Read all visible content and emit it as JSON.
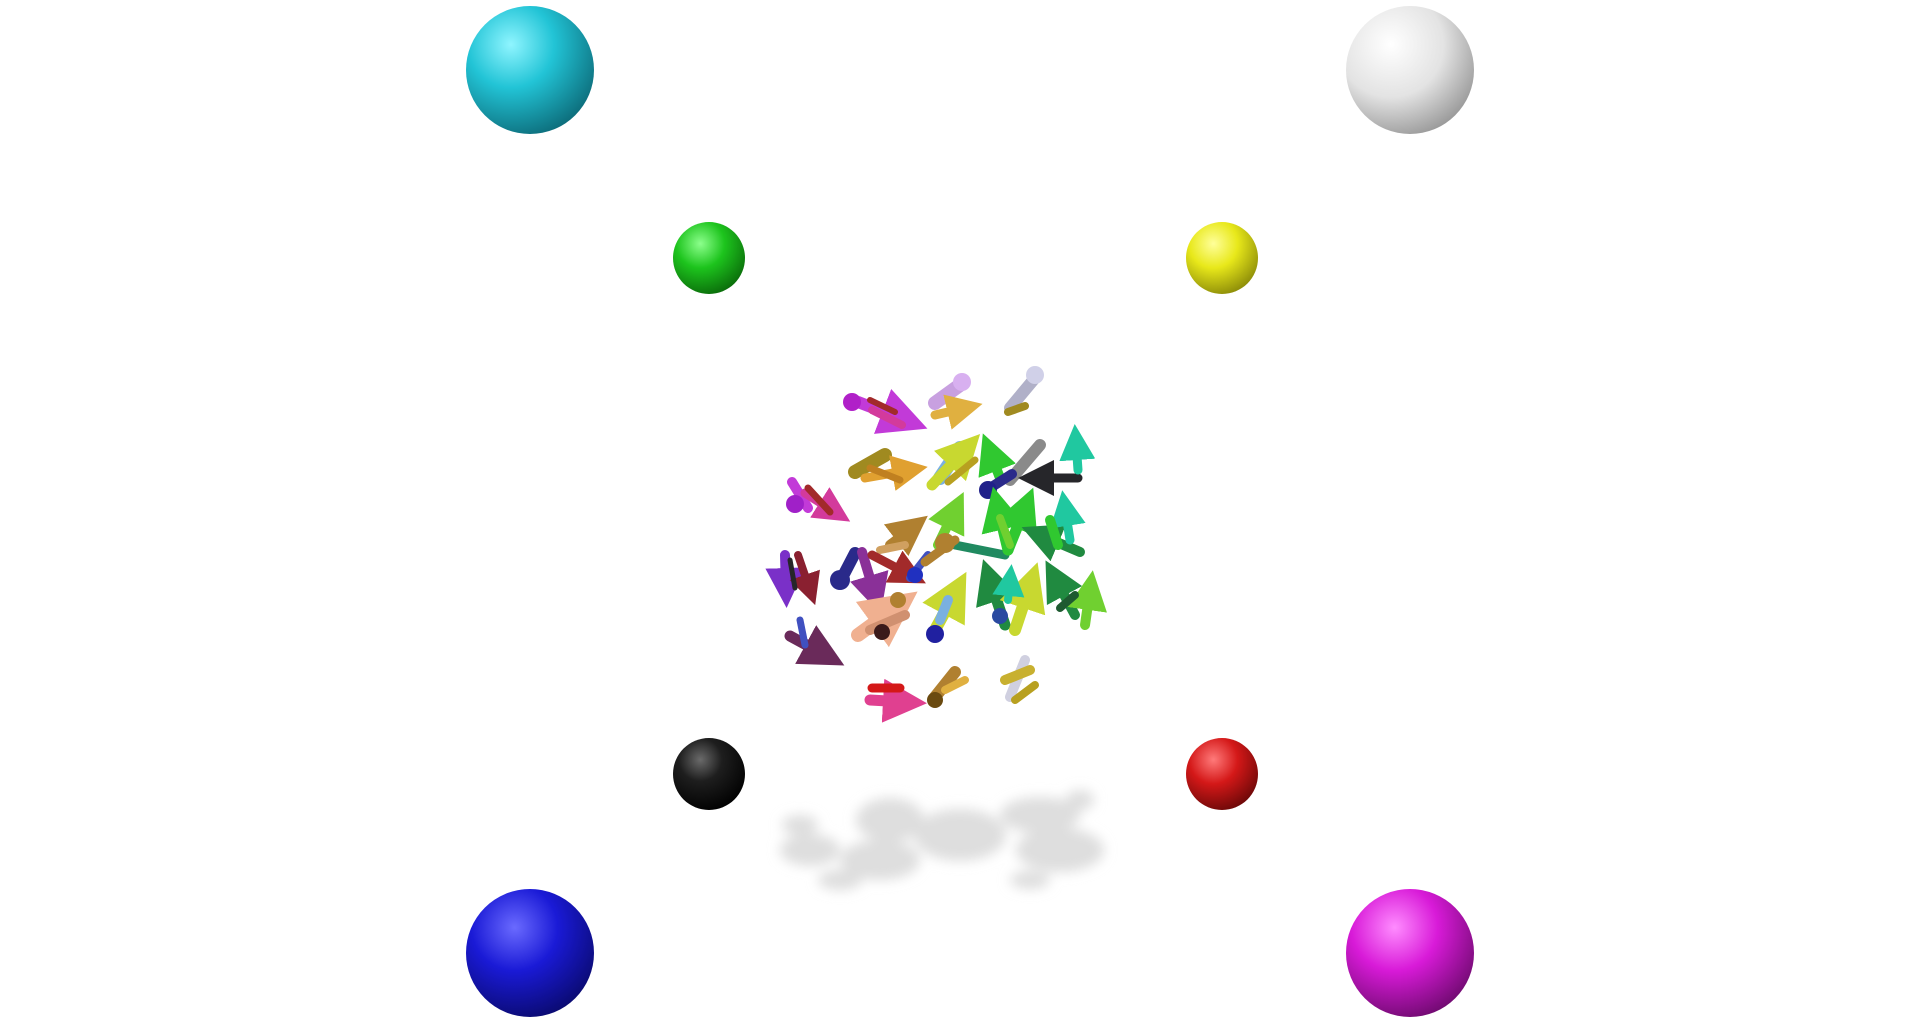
{
  "scene": {
    "background": "#ffffff",
    "corner_spheres": [
      {
        "name": "cyan-sphere",
        "color": "#22c4d6",
        "position": "top-left-outer"
      },
      {
        "name": "white-sphere",
        "color": "#dcdcdc",
        "position": "top-right-outer"
      },
      {
        "name": "blue-sphere",
        "color": "#1a1ad6",
        "position": "bottom-left-outer"
      },
      {
        "name": "magenta-sphere",
        "color": "#d81ad8",
        "position": "bottom-right-outer"
      },
      {
        "name": "green-sphere",
        "color": "#1dc41d",
        "position": "top-left-inner"
      },
      {
        "name": "yellow-sphere",
        "color": "#e8e81a",
        "position": "top-right-inner"
      },
      {
        "name": "black-sphere",
        "color": "#1a1a1a",
        "position": "bottom-left-inner"
      },
      {
        "name": "red-sphere",
        "color": "#d41818",
        "position": "bottom-right-inner"
      }
    ],
    "arrow_cluster": {
      "description_colors": [
        "#c23ad8",
        "#d33a9c",
        "#a22a2a",
        "#c8a0e0",
        "#e0b040",
        "#b0b0c8",
        "#a08a20",
        "#e0a030",
        "#7ab0e0",
        "#c8d830",
        "#30c830",
        "#26262a",
        "#20c8a0",
        "#8a8a8a",
        "#2a2a8a",
        "#7a30c8",
        "#70d030",
        "#208a60",
        "#f0b090",
        "#e04090",
        "#6a2a5a",
        "#4050c0",
        "#b08030",
        "#d0d0e0"
      ],
      "shadow_color": "#e2e2e2"
    }
  }
}
